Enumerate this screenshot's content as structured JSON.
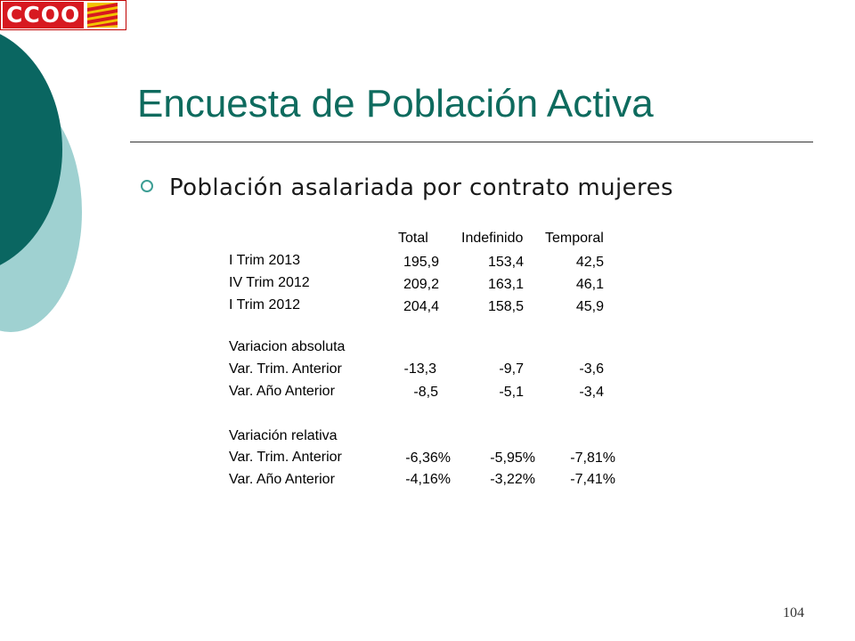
{
  "logo": {
    "text": "CCOO"
  },
  "slide": {
    "title": "Encuesta de Población Activa",
    "subtitle": "Población asalariada por contrato mujeres",
    "page_number": "104"
  },
  "colors": {
    "title": "#0e6b5e",
    "dark_teal": "#0a6661",
    "light_teal": "#9fd1d1",
    "logo_red": "#d71920"
  },
  "table": {
    "headers": [
      "Total",
      "Indefinido",
      "Temporal"
    ],
    "rows_current": [
      {
        "label": "I Trim 2013",
        "values": [
          "195,9",
          "153,4",
          "42,5"
        ]
      },
      {
        "label": "IV Trim 2012",
        "values": [
          "209,2",
          "163,1",
          "46,1"
        ]
      },
      {
        "label": "I Trim 2012",
        "values": [
          "204,4",
          "158,5",
          "45,9"
        ]
      }
    ],
    "section_absolute": {
      "heading": "Variacion absoluta",
      "rows": [
        {
          "label": "Var. Trim. Anterior",
          "values": [
            "-13,3",
            "-9,7",
            "-3,6"
          ]
        },
        {
          "label": "Var. Año Anterior",
          "values": [
            "-8,5",
            "-5,1",
            "-3,4"
          ]
        }
      ]
    },
    "section_relative": {
      "heading": "Variación relativa",
      "rows": [
        {
          "label": "Var. Trim. Anterior",
          "values": [
            "-6,36%",
            "-5,95%",
            "-7,81%"
          ]
        },
        {
          "label": "Var. Año Anterior",
          "values": [
            "-4,16%",
            "-3,22%",
            "-7,41%"
          ]
        }
      ]
    }
  }
}
